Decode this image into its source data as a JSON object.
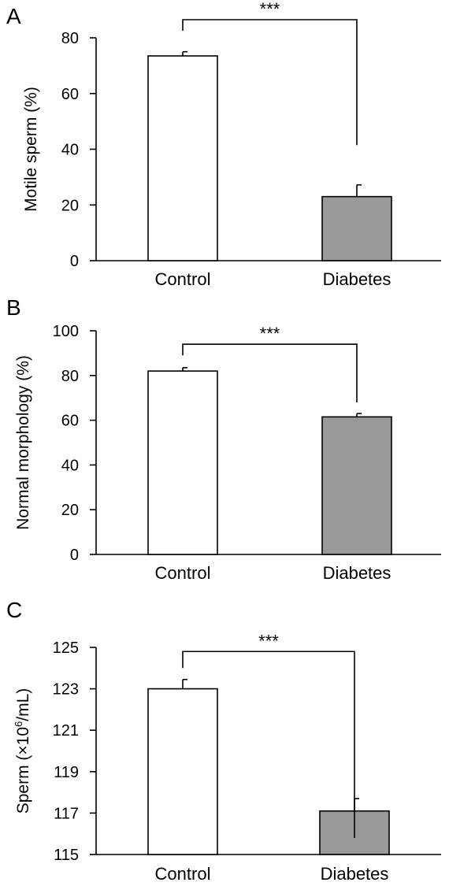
{
  "chart_data": [
    {
      "type": "bar",
      "panel": "A",
      "categories": [
        "Control",
        "Diabetes"
      ],
      "values": [
        73.5,
        23.0
      ],
      "errors": [
        1.5,
        4.2
      ],
      "ylabel": "Motile sperm (%)",
      "ylim": [
        0,
        80
      ],
      "yticks": [
        0,
        20,
        40,
        60,
        80
      ],
      "significance": "***",
      "colors": [
        "#ffffff",
        "#999999"
      ],
      "bracket_top": 86.5,
      "bracket_drop_ends": [
        82.5,
        41.5
      ]
    },
    {
      "type": "bar",
      "panel": "B",
      "categories": [
        "Control",
        "Diabetes"
      ],
      "values": [
        82.0,
        61.5
      ],
      "errors": [
        1.5,
        1.5
      ],
      "ylabel": "Normal morphology (%)",
      "ylim": [
        0,
        100
      ],
      "yticks": [
        0,
        20,
        40,
        60,
        80,
        100
      ],
      "significance": "***",
      "colors": [
        "#ffffff",
        "#999999"
      ],
      "bracket_top": 94,
      "bracket_drop_ends": [
        89,
        68
      ]
    },
    {
      "type": "bar",
      "panel": "C",
      "categories": [
        "Control",
        "Diabetes"
      ],
      "values": [
        123.0,
        117.1
      ],
      "errors": [
        0.45,
        0.6
      ],
      "ylabel_parts": [
        "Sperm (×10",
        "6",
        "/mL)"
      ],
      "ylim": [
        115,
        125
      ],
      "yticks": [
        115,
        117,
        119,
        121,
        123,
        125
      ],
      "significance": "***",
      "colors": [
        "#ffffff",
        "#999999"
      ],
      "bracket_top": 124.8,
      "bracket_drop_ends": [
        124.0,
        115.8
      ]
    }
  ]
}
